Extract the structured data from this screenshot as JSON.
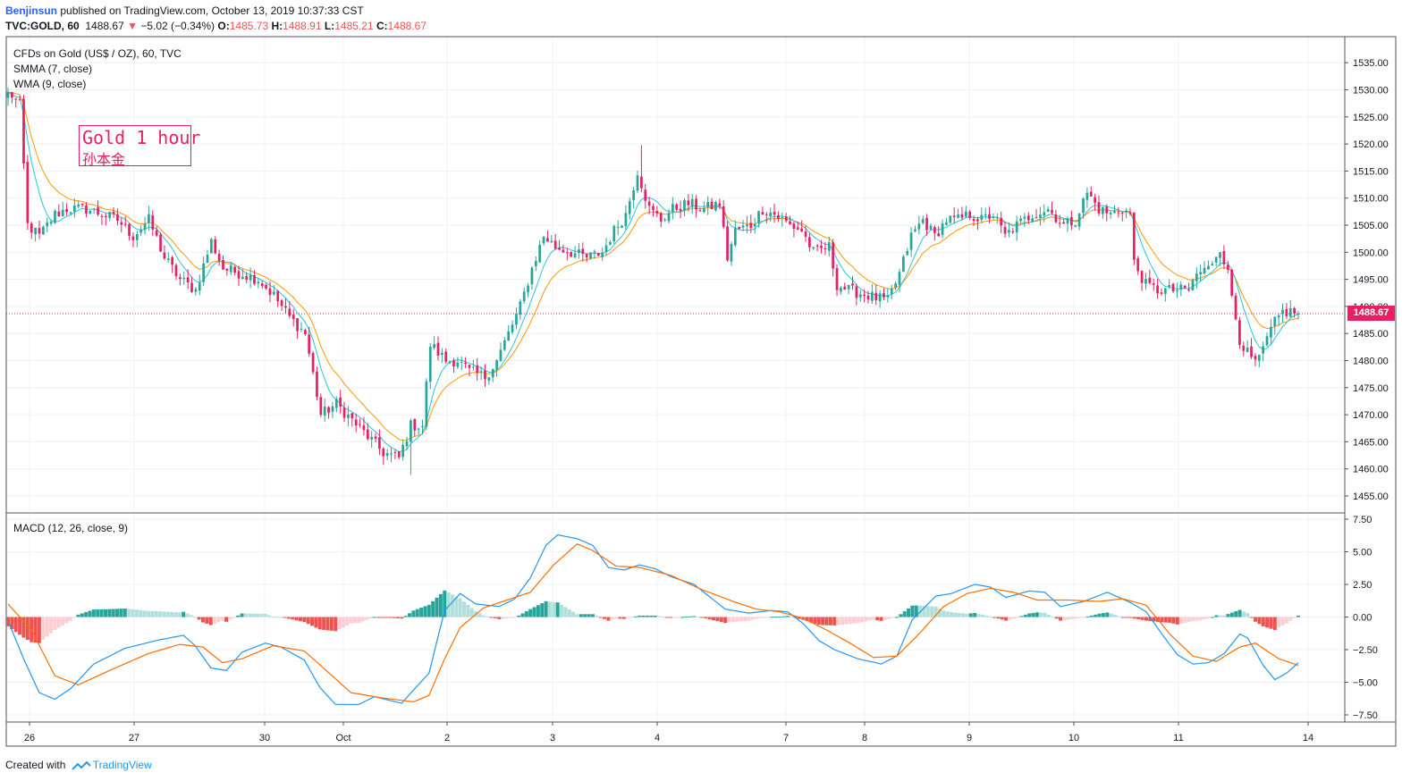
{
  "header": {
    "author": "Benjinsun",
    "published": "published on TradingView.com, October 13, 2019 10:37:33 CST",
    "symbol": "TVC:GOLD, 60",
    "last": "1488.67",
    "change_arrow": "▼",
    "change": "−5.02 (−0.34%)",
    "o_label": "O:",
    "o_val": "1485.73",
    "h_label": "H:",
    "h_val": "1488.91",
    "l_label": "L:",
    "l_val": "1485.21",
    "c_label": "C:",
    "c_val": "1488.67"
  },
  "legend": {
    "instrument": "CFDs on Gold (US$ / OZ), 60, TVC",
    "smma": "SMMA (7, close)",
    "wma": "WMA (9, close)",
    "macd": "MACD (12, 26, close, 9)"
  },
  "annotation": {
    "line1": "Gold 1 hour",
    "line2": "孙本金"
  },
  "price_tag": "1488.67",
  "footer": {
    "created": "Created with",
    "brand": "TradingView"
  },
  "colors": {
    "up": "#26a69a",
    "down": "#e91e63",
    "smma": "#ff9800",
    "wma": "#26c6da",
    "macd": "#2196f3",
    "signal": "#ff6d00",
    "hist_pos_strong": "#26a69a",
    "hist_pos_weak": "#b2dfdb",
    "hist_neg_strong": "#ef5350",
    "hist_neg_weak": "#ffcdd2",
    "grid": "#eef0f3",
    "price_line": "#e91e63"
  },
  "chart_data": [
    {
      "type": "candlestick",
      "title": "CFDs on Gold (US$ / OZ), 60, TVC",
      "x_ticks": [
        "26",
        "27",
        "30",
        "Oct",
        "2",
        "3",
        "4",
        "7",
        "8",
        "9",
        "10",
        "11",
        "14"
      ],
      "y_ticks": [
        "1455.00",
        "1460.00",
        "1465.00",
        "1470.00",
        "1475.00",
        "1480.00",
        "1485.00",
        "1490.00",
        "1495.00",
        "1500.00",
        "1505.00",
        "1510.00",
        "1515.00",
        "1520.00",
        "1525.00",
        "1530.00",
        "1535.00"
      ],
      "ylim": [
        1452.5,
        1537.5
      ],
      "last_price": 1488.67,
      "grid": true,
      "close_path": [
        [
          0,
          1530
        ],
        [
          3,
          1527
        ],
        [
          5,
          1505
        ],
        [
          8,
          1503
        ],
        [
          12,
          1507
        ],
        [
          15,
          1508
        ],
        [
          20,
          1508
        ],
        [
          24,
          1507
        ],
        [
          28,
          1506
        ],
        [
          32,
          1503
        ],
        [
          36,
          1506
        ],
        [
          40,
          1499
        ],
        [
          44,
          1495
        ],
        [
          48,
          1493
        ],
        [
          52,
          1502
        ],
        [
          55,
          1497
        ],
        [
          60,
          1496
        ],
        [
          64,
          1495
        ],
        [
          68,
          1492
        ],
        [
          72,
          1488
        ],
        [
          76,
          1485
        ],
        [
          80,
          1470
        ],
        [
          84,
          1472
        ],
        [
          88,
          1469
        ],
        [
          92,
          1466
        ],
        [
          96,
          1463
        ],
        [
          100,
          1462
        ],
        [
          103,
          1468
        ],
        [
          106,
          1468
        ],
        [
          108,
          1483
        ],
        [
          112,
          1480
        ],
        [
          115,
          1480
        ],
        [
          118,
          1478
        ],
        [
          122,
          1477
        ],
        [
          125,
          1480
        ],
        [
          128,
          1485
        ],
        [
          131,
          1490
        ],
        [
          134,
          1497
        ],
        [
          137,
          1503
        ],
        [
          140,
          1501
        ],
        [
          144,
          1500
        ],
        [
          148,
          1499
        ],
        [
          152,
          1500
        ],
        [
          155,
          1504
        ],
        [
          158,
          1507
        ],
        [
          161,
          1515
        ],
        [
          164,
          1508
        ],
        [
          167,
          1506
        ],
        [
          170,
          1508
        ],
        [
          174,
          1509
        ],
        [
          178,
          1508
        ],
        [
          182,
          1509
        ],
        [
          184,
          1499
        ],
        [
          186,
          1504
        ],
        [
          190,
          1505
        ],
        [
          193,
          1508
        ],
        [
          196,
          1507
        ],
        [
          200,
          1505
        ],
        [
          203,
          1504
        ],
        [
          206,
          1500
        ],
        [
          210,
          1501
        ],
        [
          212,
          1494
        ],
        [
          215,
          1493
        ],
        [
          220,
          1492
        ],
        [
          225,
          1491
        ],
        [
          228,
          1496
        ],
        [
          231,
          1503
        ],
        [
          234,
          1506
        ],
        [
          237,
          1503
        ],
        [
          240,
          1506
        ],
        [
          243,
          1506
        ],
        [
          246,
          1507
        ],
        [
          249,
          1506
        ],
        [
          252,
          1507
        ],
        [
          255,
          1503
        ],
        [
          258,
          1505
        ],
        [
          262,
          1507
        ],
        [
          266,
          1508
        ],
        [
          270,
          1505
        ],
        [
          273,
          1506
        ],
        [
          276,
          1511
        ],
        [
          279,
          1508
        ],
        [
          282,
          1507
        ],
        [
          285,
          1508
        ],
        [
          287,
          1507
        ],
        [
          288,
          1498
        ],
        [
          291,
          1494
        ],
        [
          294,
          1493
        ],
        [
          298,
          1493
        ],
        [
          302,
          1493
        ],
        [
          304,
          1496
        ],
        [
          307,
          1497
        ],
        [
          310,
          1501
        ],
        [
          312,
          1496
        ],
        [
          315,
          1484
        ],
        [
          318,
          1480
        ],
        [
          320,
          1480
        ],
        [
          322,
          1484
        ],
        [
          324,
          1487
        ],
        [
          326,
          1489
        ]
      ],
      "extremes": {
        "high": 1519.8,
        "low": 1458.9
      }
    },
    {
      "type": "line",
      "title": "MACD (12, 26, close, 9)",
      "y_ticks": [
        "−7.50",
        "−5.00",
        "−2.50",
        "0.00",
        "2.50",
        "5.00",
        "7.50"
      ],
      "ylim": [
        -8.1,
        7.7
      ],
      "series": [
        {
          "name": "MACD",
          "points": [
            [
              0,
              -0.3
            ],
            [
              4,
              -3.2
            ],
            [
              8,
              -5.8
            ],
            [
              12,
              -6.3
            ],
            [
              16,
              -5.5
            ],
            [
              22,
              -3.6
            ],
            [
              30,
              -2.4
            ],
            [
              38,
              -1.8
            ],
            [
              45,
              -1.4
            ],
            [
              48,
              -2.2
            ],
            [
              52,
              -3.9
            ],
            [
              56,
              -4.1
            ],
            [
              60,
              -2.7
            ],
            [
              66,
              -2.0
            ],
            [
              70,
              -2.3
            ],
            [
              76,
              -3.3
            ],
            [
              80,
              -5.4
            ],
            [
              84,
              -6.7
            ],
            [
              90,
              -6.7
            ],
            [
              94,
              -6.1
            ],
            [
              98,
              -6.4
            ],
            [
              101,
              -6.6
            ],
            [
              104,
              -5.6
            ],
            [
              108,
              -4.3
            ],
            [
              112,
              0.5
            ],
            [
              116,
              1.8
            ],
            [
              120,
              1.0
            ],
            [
              126,
              0.8
            ],
            [
              130,
              1.4
            ],
            [
              134,
              3.0
            ],
            [
              138,
              5.5
            ],
            [
              141,
              6.3
            ],
            [
              146,
              6.0
            ],
            [
              150,
              5.5
            ],
            [
              154,
              3.8
            ],
            [
              158,
              3.6
            ],
            [
              162,
              4.0
            ],
            [
              166,
              3.7
            ],
            [
              170,
              3.1
            ],
            [
              176,
              2.5
            ],
            [
              184,
              0.6
            ],
            [
              190,
              0.3
            ],
            [
              196,
              0.5
            ],
            [
              200,
              0.4
            ],
            [
              204,
              -0.5
            ],
            [
              208,
              -1.8
            ],
            [
              212,
              -2.5
            ],
            [
              218,
              -3.2
            ],
            [
              224,
              -3.6
            ],
            [
              228,
              -3.0
            ],
            [
              232,
              -0.2
            ],
            [
              238,
              1.6
            ],
            [
              242,
              1.8
            ],
            [
              248,
              2.5
            ],
            [
              252,
              2.3
            ],
            [
              256,
              1.5
            ],
            [
              262,
              2.0
            ],
            [
              266,
              1.9
            ],
            [
              270,
              0.8
            ],
            [
              276,
              1.2
            ],
            [
              282,
              1.9
            ],
            [
              288,
              1.1
            ],
            [
              292,
              0.4
            ],
            [
              296,
              -1.3
            ],
            [
              300,
              -2.9
            ],
            [
              304,
              -3.6
            ],
            [
              308,
              -3.5
            ],
            [
              312,
              -2.8
            ],
            [
              316,
              -1.3
            ],
            [
              318,
              -1.6
            ],
            [
              322,
              -3.7
            ],
            [
              325,
              -4.8
            ],
            [
              328,
              -4.3
            ],
            [
              331,
              -3.5
            ]
          ]
        },
        {
          "name": "Signal",
          "points": [
            [
              0,
              1.0
            ],
            [
              6,
              -1.0
            ],
            [
              12,
              -4.5
            ],
            [
              18,
              -5.2
            ],
            [
              26,
              -4.1
            ],
            [
              36,
              -2.8
            ],
            [
              44,
              -2.1
            ],
            [
              50,
              -2.3
            ],
            [
              55,
              -3.5
            ],
            [
              60,
              -3.2
            ],
            [
              68,
              -2.2
            ],
            [
              76,
              -2.6
            ],
            [
              82,
              -4.2
            ],
            [
              88,
              -5.8
            ],
            [
              96,
              -6.2
            ],
            [
              104,
              -6.5
            ],
            [
              108,
              -6.0
            ],
            [
              112,
              -3.2
            ],
            [
              116,
              -0.8
            ],
            [
              122,
              0.7
            ],
            [
              128,
              1.3
            ],
            [
              134,
              1.9
            ],
            [
              140,
              4.0
            ],
            [
              146,
              5.6
            ],
            [
              150,
              5.1
            ],
            [
              156,
              3.9
            ],
            [
              162,
              3.8
            ],
            [
              170,
              3.2
            ],
            [
              178,
              2.1
            ],
            [
              186,
              1.2
            ],
            [
              192,
              0.6
            ],
            [
              198,
              0.4
            ],
            [
              204,
              -0.1
            ],
            [
              210,
              -1.0
            ],
            [
              216,
              -2.0
            ],
            [
              222,
              -3.1
            ],
            [
              228,
              -3.0
            ],
            [
              234,
              -1.2
            ],
            [
              240,
              0.8
            ],
            [
              246,
              1.8
            ],
            [
              252,
              2.2
            ],
            [
              258,
              1.9
            ],
            [
              264,
              1.3
            ],
            [
              272,
              1.3
            ],
            [
              280,
              1.2
            ],
            [
              286,
              1.4
            ],
            [
              292,
              0.9
            ],
            [
              298,
              -1.3
            ],
            [
              304,
              -3.0
            ],
            [
              310,
              -3.4
            ],
            [
              316,
              -2.3
            ],
            [
              320,
              -2.0
            ],
            [
              326,
              -3.2
            ],
            [
              331,
              -3.7
            ]
          ]
        }
      ]
    }
  ]
}
